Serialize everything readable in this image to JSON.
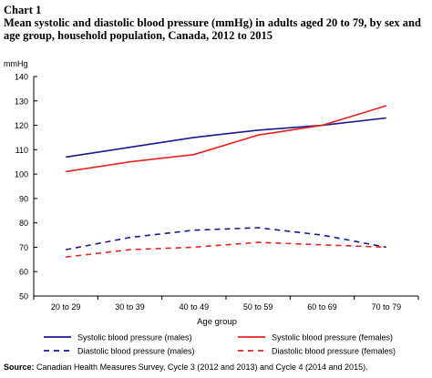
{
  "chart_label": "Chart 1",
  "chart_title": "Mean systolic and diastolic blood pressure (mmHg) in adults aged 20 to 79, by sex and age group, household population, Canada, 2012 to 2015",
  "source_label": "Source:",
  "source_text": " Canadian Health Measures Survey, Cycle 3 (2012 and 2013) and Cycle 4 (2014 and 2015).",
  "chart_data": {
    "type": "line",
    "title": "Mean systolic and diastolic blood pressure (mmHg) in adults aged 20 to 79, by sex and age group, household population, Canada, 2012 to 2015",
    "xlabel": "Age group",
    "ylabel": "mmHg",
    "ylim": [
      50,
      140
    ],
    "yticks": [
      50,
      60,
      70,
      80,
      90,
      100,
      110,
      120,
      130,
      140
    ],
    "grid": false,
    "legend_position": "bottom",
    "categories": [
      "20 to 29",
      "30 to 39",
      "40 to 49",
      "50 to 59",
      "60 to 69",
      "70 to 79"
    ],
    "series": [
      {
        "name": "Systolic blood pressure (males)",
        "values": [
          107,
          111,
          115,
          118,
          120,
          123
        ],
        "color": "#1a1a8c",
        "dash": false
      },
      {
        "name": "Systolic blood pressure (females)",
        "values": [
          101,
          105,
          108,
          116,
          120,
          128
        ],
        "color": "#e8231e",
        "dash": false
      },
      {
        "name": "Diastolic blood pressure (males)",
        "values": [
          69,
          74,
          77,
          78,
          75,
          70
        ],
        "color": "#1a1a8c",
        "dash": true
      },
      {
        "name": "Diastolic blood pressure (females)",
        "values": [
          66,
          69,
          70,
          72,
          71,
          70
        ],
        "color": "#e8231e",
        "dash": true
      }
    ]
  }
}
